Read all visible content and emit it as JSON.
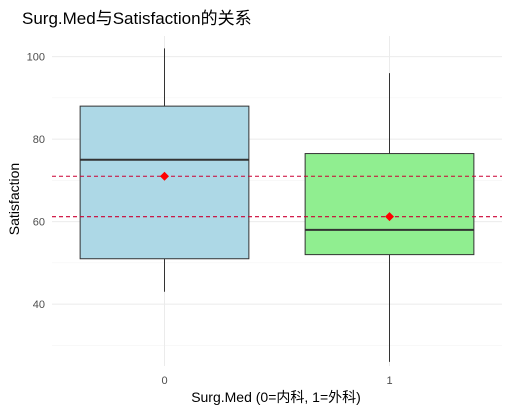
{
  "chart_data": {
    "type": "box",
    "title": "Surg.Med与Satisfaction的关系",
    "xlabel": "Surg.Med (0=内科, 1=外科)",
    "ylabel": "Satisfaction",
    "ylim": [
      25,
      105
    ],
    "yticks": [
      40,
      60,
      80,
      100
    ],
    "grid": true,
    "categories": [
      "0",
      "1"
    ],
    "boxes": [
      {
        "category": "0",
        "fill": "#add8e6",
        "whisker_low": 43,
        "q1": 51,
        "median": 75,
        "q3": 88,
        "whisker_high": 102,
        "mean": 71
      },
      {
        "category": "1",
        "fill": "#90ee90",
        "whisker_low": 26,
        "q1": 52,
        "median": 58,
        "q3": 76.5,
        "whisker_high": 96,
        "mean": 61.2
      }
    ],
    "mean_marker_color": "#ff0000",
    "reference_lines": [
      {
        "y": 71,
        "color": "#cc0033",
        "style": "dashed"
      },
      {
        "y": 61.2,
        "color": "#cc0033",
        "style": "dashed"
      }
    ]
  }
}
